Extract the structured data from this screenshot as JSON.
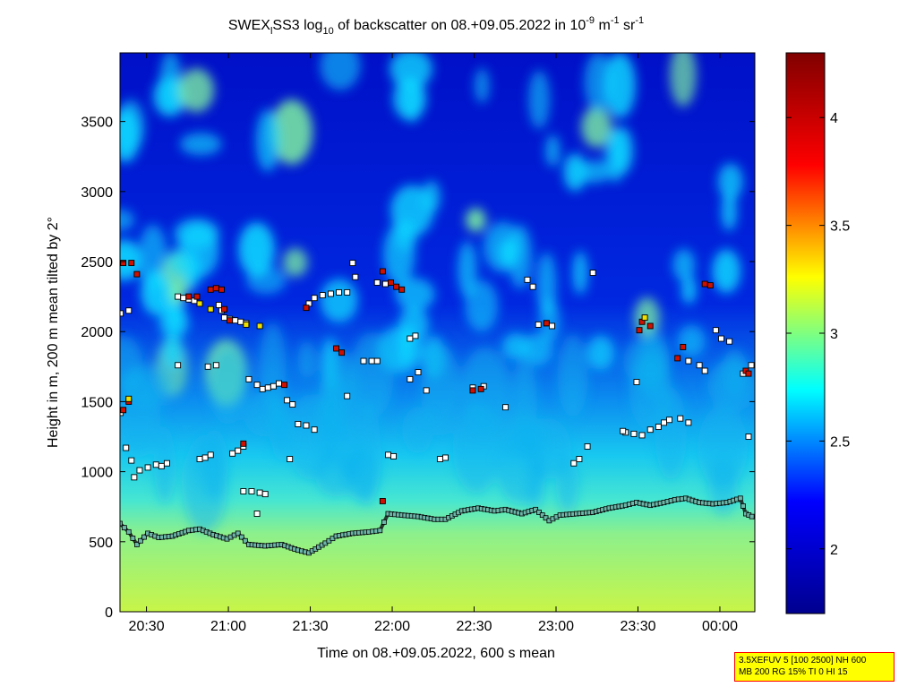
{
  "chart_data": {
    "type": "heatmap",
    "title": {
      "prefix": "SWEX",
      "sub1": "l",
      "mid": "SS3 log",
      "sub2": "10",
      "middle": " of backscatter on 08.+09.05.2022 in 10",
      "sup1": "-9",
      "unit1": " m",
      "sup2": "-1",
      "unit2": " sr",
      "sup3": "-1"
    },
    "xlabel": "Time on 08.+09.05.2022, 600 s mean",
    "ylabel": "Height in m, 200 m mean tilted by 2°",
    "x_ticks": [
      {
        "t": 30.5,
        "label": "20:30"
      },
      {
        "t": 60.5,
        "label": "21:00"
      },
      {
        "t": 90.5,
        "label": "21:30"
      },
      {
        "t": 120.5,
        "label": "22:00"
      },
      {
        "t": 150.5,
        "label": "22:30"
      },
      {
        "t": 180.5,
        "label": "23:00"
      },
      {
        "t": 210.5,
        "label": "23:30"
      },
      {
        "t": 240.5,
        "label": "00:00"
      }
    ],
    "xlim": [
      20.8,
      253.3
    ],
    "ylim": [
      0,
      3990
    ],
    "y_ticks": [
      {
        "v": 0,
        "label": "0"
      },
      {
        "v": 500,
        "label": "500"
      },
      {
        "v": 1000,
        "label": "1000"
      },
      {
        "v": 1500,
        "label": "1500"
      },
      {
        "v": 2000,
        "label": "2000"
      },
      {
        "v": 2500,
        "label": "2500"
      },
      {
        "v": 3000,
        "label": "3000"
      },
      {
        "v": 3500,
        "label": "3500"
      }
    ],
    "colorbar": {
      "range": [
        1.7,
        4.3
      ],
      "ticks": [
        {
          "v": 2,
          "label": "2"
        },
        {
          "v": 2.5,
          "label": "2.5"
        },
        {
          "v": 3,
          "label": "3"
        },
        {
          "v": 3.5,
          "label": "3.5"
        },
        {
          "v": 4,
          "label": "4"
        }
      ]
    },
    "colormap": [
      "#00008f",
      "#0000ff",
      "#00ffff",
      "#ffff00",
      "#ff0000",
      "#800000"
    ],
    "grid": false,
    "boundary_layer_top": [
      [
        20.8,
        630
      ],
      [
        24,
        570
      ],
      [
        27,
        480
      ],
      [
        31,
        560
      ],
      [
        35,
        530
      ],
      [
        40,
        540
      ],
      [
        46,
        580
      ],
      [
        50,
        590
      ],
      [
        55,
        550
      ],
      [
        60,
        520
      ],
      [
        64,
        560
      ],
      [
        68,
        480
      ],
      [
        74,
        470
      ],
      [
        80,
        480
      ],
      [
        86,
        440
      ],
      [
        90,
        420
      ],
      [
        96,
        490
      ],
      [
        100,
        540
      ],
      [
        106,
        560
      ],
      [
        112,
        570
      ],
      [
        116,
        580
      ],
      [
        119,
        700
      ],
      [
        124,
        690
      ],
      [
        130,
        680
      ],
      [
        136,
        660
      ],
      [
        140,
        660
      ],
      [
        146,
        720
      ],
      [
        152,
        740
      ],
      [
        158,
        720
      ],
      [
        162,
        730
      ],
      [
        168,
        700
      ],
      [
        173,
        730
      ],
      [
        178,
        650
      ],
      [
        182,
        690
      ],
      [
        188,
        700
      ],
      [
        194,
        710
      ],
      [
        200,
        740
      ],
      [
        206,
        760
      ],
      [
        210,
        780
      ],
      [
        215,
        760
      ],
      [
        220,
        780
      ],
      [
        224,
        800
      ],
      [
        228,
        810
      ],
      [
        233,
        780
      ],
      [
        238,
        770
      ],
      [
        243,
        780
      ],
      [
        248,
        810
      ],
      [
        250,
        700
      ],
      [
        253.3,
        670
      ]
    ],
    "cloud_returns_white": [
      [
        21,
        2130
      ],
      [
        24,
        2150
      ],
      [
        21,
        1420
      ],
      [
        23,
        1170
      ],
      [
        25,
        1080
      ],
      [
        26,
        960
      ],
      [
        28,
        1010
      ],
      [
        31,
        1030
      ],
      [
        34,
        1050
      ],
      [
        36,
        1040
      ],
      [
        38,
        1060
      ],
      [
        42,
        2250
      ],
      [
        44,
        2240
      ],
      [
        46,
        2230
      ],
      [
        48,
        2220
      ],
      [
        42,
        1760
      ],
      [
        50,
        1090
      ],
      [
        52,
        1100
      ],
      [
        54,
        1120
      ],
      [
        53,
        1750
      ],
      [
        56,
        1760
      ],
      [
        58,
        2150
      ],
      [
        57,
        2190
      ],
      [
        59,
        2100
      ],
      [
        61,
        2090
      ],
      [
        63,
        2080
      ],
      [
        65,
        2070
      ],
      [
        67,
        2060
      ],
      [
        62,
        1130
      ],
      [
        64,
        1150
      ],
      [
        66,
        1180
      ],
      [
        68,
        1660
      ],
      [
        71,
        1620
      ],
      [
        73,
        1590
      ],
      [
        75,
        1600
      ],
      [
        77,
        1610
      ],
      [
        79,
        1630
      ],
      [
        66,
        860
      ],
      [
        69,
        860
      ],
      [
        72,
        850
      ],
      [
        74,
        840
      ],
      [
        71,
        700
      ],
      [
        82,
        1510
      ],
      [
        84,
        1480
      ],
      [
        86,
        1340
      ],
      [
        89,
        1330
      ],
      [
        92,
        1300
      ],
      [
        83,
        1090
      ],
      [
        90,
        2200
      ],
      [
        92,
        2240
      ],
      [
        95,
        2260
      ],
      [
        98,
        2270
      ],
      [
        101,
        2280
      ],
      [
        104,
        2280
      ],
      [
        107,
        2390
      ],
      [
        106,
        2490
      ],
      [
        104,
        1540
      ],
      [
        110,
        1790
      ],
      [
        113,
        1790
      ],
      [
        115,
        1790
      ],
      [
        115,
        2350
      ],
      [
        118,
        2340
      ],
      [
        118,
        2340
      ],
      [
        119,
        1120
      ],
      [
        121,
        1110
      ],
      [
        127,
        1950
      ],
      [
        129,
        1970
      ],
      [
        127,
        1660
      ],
      [
        130,
        1710
      ],
      [
        133,
        1580
      ],
      [
        138,
        1090
      ],
      [
        140,
        1100
      ],
      [
        150,
        1600
      ],
      [
        154,
        1610
      ],
      [
        162,
        1460
      ],
      [
        170,
        2370
      ],
      [
        172,
        2320
      ],
      [
        174,
        2050
      ],
      [
        177,
        2060
      ],
      [
        179,
        2040
      ],
      [
        187,
        1060
      ],
      [
        189,
        1090
      ],
      [
        192,
        1180
      ],
      [
        194,
        2420
      ],
      [
        206,
        1280
      ],
      [
        209,
        1270
      ],
      [
        212,
        1260
      ],
      [
        215,
        1300
      ],
      [
        218,
        1320
      ],
      [
        220,
        1350
      ],
      [
        222,
        1370
      ],
      [
        226,
        1380
      ],
      [
        229,
        1350
      ],
      [
        229,
        1790
      ],
      [
        233,
        1760
      ],
      [
        235,
        1720
      ],
      [
        239,
        2010
      ],
      [
        241,
        1950
      ],
      [
        244,
        1930
      ],
      [
        249,
        1700
      ],
      [
        252,
        1760
      ],
      [
        251,
        1250
      ],
      [
        210,
        1640
      ],
      [
        205,
        1290
      ]
    ],
    "cloud_returns_red": [
      [
        22,
        2490
      ],
      [
        25,
        2490
      ],
      [
        27,
        2410
      ],
      [
        22,
        1440
      ],
      [
        24,
        1500
      ],
      [
        46,
        2250
      ],
      [
        49,
        2250
      ],
      [
        54,
        2300
      ],
      [
        56,
        2310
      ],
      [
        58,
        2300
      ],
      [
        59,
        2160
      ],
      [
        61,
        2080
      ],
      [
        66,
        1200
      ],
      [
        81,
        1620
      ],
      [
        100,
        1880
      ],
      [
        102,
        1850
      ],
      [
        89,
        2170
      ],
      [
        117,
        2430
      ],
      [
        120,
        2350
      ],
      [
        122,
        2320
      ],
      [
        124,
        2300
      ],
      [
        117,
        790
      ],
      [
        150,
        1580
      ],
      [
        153,
        1590
      ],
      [
        177,
        2060
      ],
      [
        212,
        2070
      ],
      [
        215,
        2040
      ],
      [
        211,
        2010
      ],
      [
        225,
        1810
      ],
      [
        227,
        1890
      ],
      [
        235,
        2340
      ],
      [
        237,
        2330
      ],
      [
        250,
        1720
      ],
      [
        251,
        1700
      ]
    ],
    "cloud_returns_yellow": [
      [
        50,
        2200
      ],
      [
        54,
        2160
      ],
      [
        67,
        2050
      ],
      [
        72,
        2040
      ],
      [
        24,
        1520
      ],
      [
        213,
        2100
      ]
    ],
    "info_box": {
      "line1": "3.5XEFUV 5 [100 2500] NH 600",
      "line2": "MB 200 RG 15% TI 0 HI 15"
    }
  }
}
